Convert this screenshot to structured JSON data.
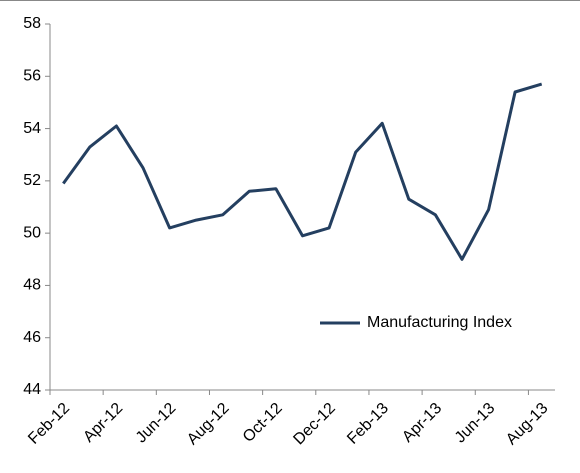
{
  "chart_data": {
    "type": "line",
    "categories": [
      "Feb-12",
      null,
      "Apr-12",
      null,
      "Jun-12",
      null,
      "Aug-12",
      null,
      "Oct-12",
      null,
      "Dec-12",
      null,
      "Feb-13",
      null,
      "Apr-13",
      null,
      "Jun-13",
      null,
      "Aug-13"
    ],
    "series": [
      {
        "name": "Manufacturing Index",
        "color": "#243f60",
        "values": [
          51.9,
          53.3,
          54.1,
          52.5,
          50.2,
          50.5,
          50.7,
          51.6,
          51.7,
          49.9,
          50.2,
          53.1,
          54.2,
          51.3,
          50.7,
          49.0,
          50.9,
          55.4,
          55.7
        ]
      }
    ],
    "ylim": [
      44,
      58
    ],
    "yticks": [
      44,
      46,
      48,
      50,
      52,
      54,
      56,
      58
    ],
    "grid": false,
    "legend": "lower right"
  }
}
